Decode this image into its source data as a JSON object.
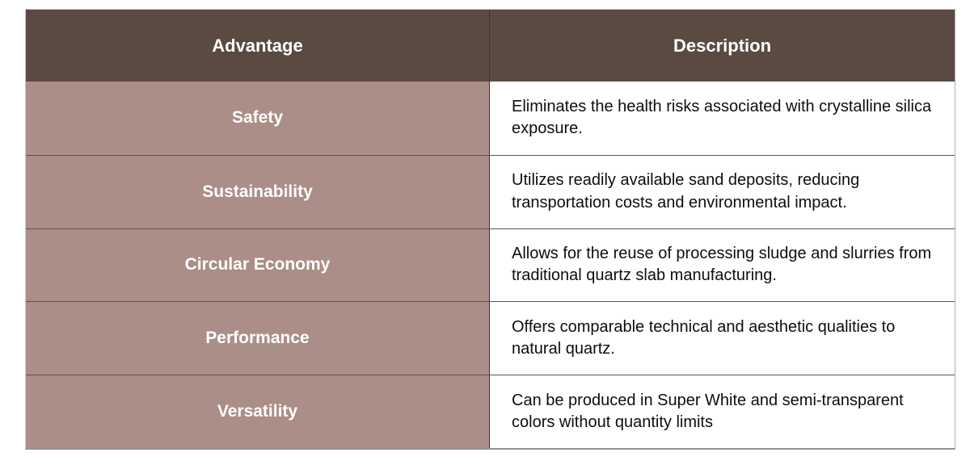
{
  "table": {
    "columns": [
      {
        "label": "Advantage"
      },
      {
        "label": "Description"
      }
    ],
    "rows": [
      {
        "advantage": "Safety",
        "description": "Eliminates the health risks associated with crystalline silica exposure."
      },
      {
        "advantage": "Sustainability",
        "description": "Utilizes readily available sand deposits, reducing transportation costs and environmental impact."
      },
      {
        "advantage": "Circular Economy",
        "description": "Allows for the reuse of processing sludge and slurries from traditional quartz slab manufacturing."
      },
      {
        "advantage": "Performance",
        "description": "Offers comparable technical and aesthetic qualities to natural quartz."
      },
      {
        "advantage": "Versatility",
        "description": "Can be produced in Super White and semi-transparent colors without quantity limits"
      }
    ],
    "colors": {
      "header_bg": "#5a4a42",
      "advantage_bg": "#aa8e87",
      "description_bg": "#ffffff",
      "header_text": "#ffffff",
      "description_text": "#0e0e0e",
      "row_divider": "#565656",
      "column_divider": "#3c3531"
    }
  }
}
